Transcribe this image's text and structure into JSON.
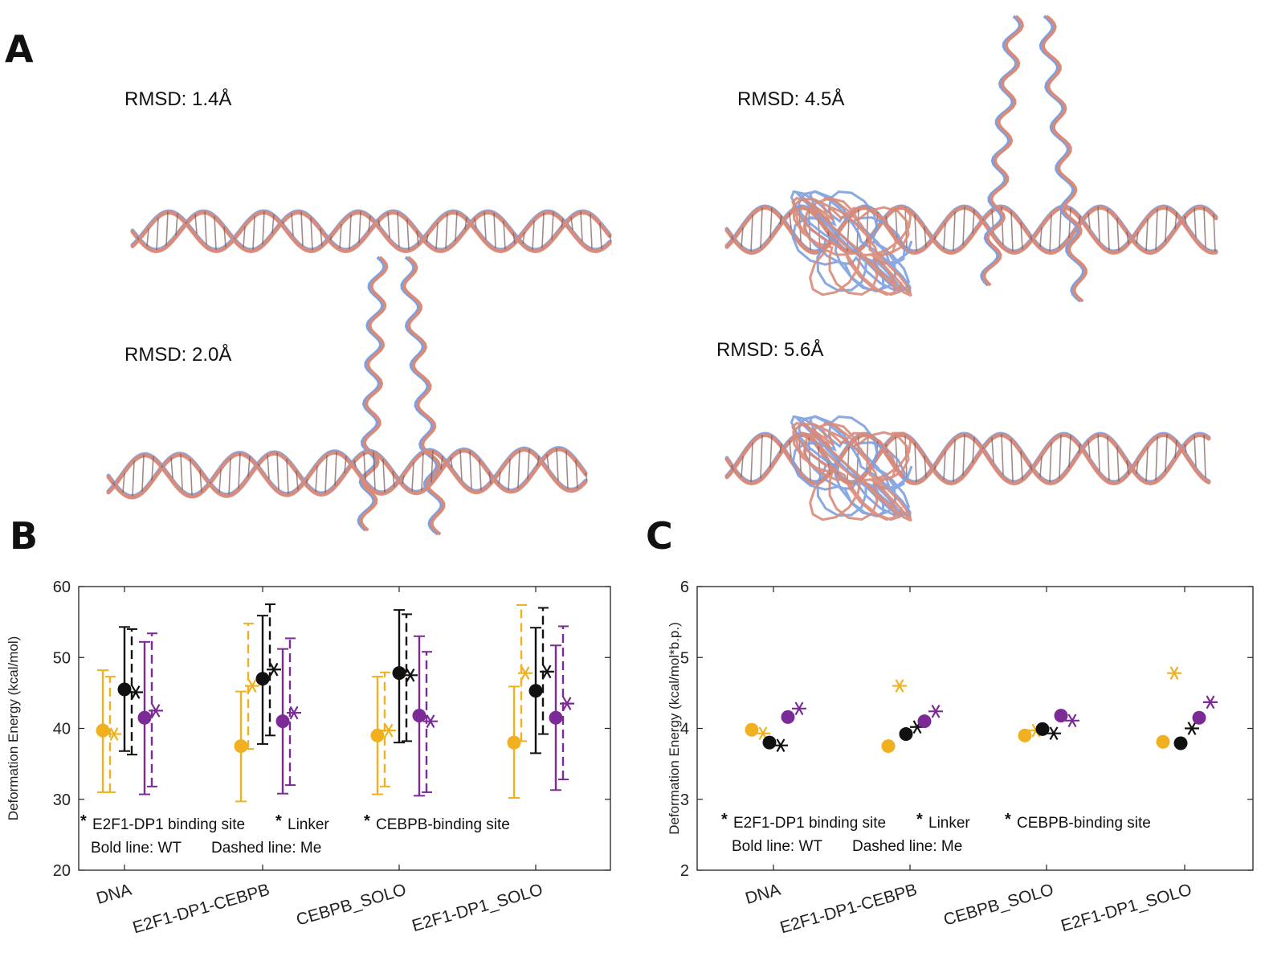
{
  "panels": {
    "a": "A",
    "b": "B",
    "c": "C"
  },
  "structures": [
    {
      "rmsd": "RMSD: 1.4Å"
    },
    {
      "rmsd": "RMSD: 2.0Å"
    },
    {
      "rmsd": "RMSD: 4.5Å"
    },
    {
      "rmsd": "RMSD: 5.6Å"
    }
  ],
  "colors": {
    "wt_structure": "#7da0e0",
    "me_structure": "#d98a78",
    "e2f1": "#f0b020",
    "linker": "#111111",
    "cebpb": "#7b2a96"
  },
  "chart_data": [
    {
      "type": "scatter",
      "title": "",
      "ylabel": "Deformation Energy (kcal/mol)",
      "ylim": [
        20,
        60
      ],
      "yticks": [
        20,
        30,
        40,
        50,
        60
      ],
      "categories": [
        "DNA",
        "E2F1-DP1-CEBPB",
        "CEBPB_SOLO",
        "E2F1-DP1_SOLO"
      ],
      "series": [
        {
          "name": "E2F1-DP1 binding site",
          "color": "#f0b020",
          "wt": [
            39.7,
            37.5,
            39.0,
            38.0
          ],
          "me": [
            39.2,
            46.0,
            39.7,
            47.8
          ],
          "wt_err": [
            [
              31.0,
              48.2
            ],
            [
              29.7,
              45.2
            ],
            [
              30.7,
              47.3
            ],
            [
              30.2,
              45.9
            ]
          ],
          "me_err": [
            [
              31.0,
              47.3
            ],
            [
              37.1,
              54.8
            ],
            [
              31.8,
              47.9
            ],
            [
              38.2,
              57.4
            ]
          ]
        },
        {
          "name": "Linker",
          "color": "#111111",
          "wt": [
            45.5,
            47.0,
            47.8,
            45.3
          ],
          "me": [
            45.1,
            48.3,
            47.5,
            48.0
          ],
          "wt_err": [
            [
              36.8,
              54.3
            ],
            [
              37.8,
              55.9
            ],
            [
              38.0,
              56.7
            ],
            [
              36.5,
              54.2
            ]
          ],
          "me_err": [
            [
              36.3,
              54.0
            ],
            [
              39.0,
              57.5
            ],
            [
              38.2,
              56.1
            ],
            [
              39.2,
              57.0
            ]
          ]
        },
        {
          "name": "CEBPB-binding site",
          "color": "#7b2a96",
          "wt": [
            41.5,
            41.0,
            41.8,
            41.5
          ],
          "me": [
            42.5,
            42.2,
            41.0,
            43.5
          ],
          "wt_err": [
            [
              30.7,
              52.2
            ],
            [
              30.8,
              51.2
            ],
            [
              30.5,
              53.0
            ],
            [
              31.3,
              51.7
            ]
          ],
          "me_err": [
            [
              31.8,
              53.4
            ],
            [
              32.0,
              52.7
            ],
            [
              31.0,
              50.8
            ],
            [
              32.8,
              54.4
            ]
          ]
        }
      ],
      "legend": {
        "items": [
          "E2F1-DP1 binding site",
          "Linker",
          "CEBPB-binding site"
        ],
        "line1": "Bold line: WT",
        "line2": "Dashed line:  Me"
      }
    },
    {
      "type": "scatter",
      "title": "",
      "ylabel": "Deformation Energy (kcal/mol*b.p.)",
      "ylim": [
        2,
        6
      ],
      "yticks": [
        2,
        3,
        4,
        5,
        6
      ],
      "categories": [
        "DNA",
        "E2F1-DP1-CEBPB",
        "CEBPB_SOLO",
        "E2F1-DP1_SOLO"
      ],
      "series": [
        {
          "name": "E2F1-DP1 binding site",
          "color": "#f0b020",
          "wt": [
            3.98,
            3.75,
            3.9,
            3.81
          ],
          "me": [
            3.93,
            4.6,
            3.97,
            4.78
          ]
        },
        {
          "name": "Linker",
          "color": "#111111",
          "wt": [
            3.8,
            3.92,
            3.99,
            3.79
          ],
          "me": [
            3.76,
            4.02,
            3.93,
            4.0
          ]
        },
        {
          "name": "CEBPB-binding site",
          "color": "#7b2a96",
          "wt": [
            4.16,
            4.1,
            4.18,
            4.15
          ],
          "me": [
            4.28,
            4.24,
            4.11,
            4.37
          ]
        }
      ],
      "legend": {
        "items": [
          "E2F1-DP1 binding site",
          "Linker",
          "CEBPB-binding site"
        ],
        "line1": "Bold line: WT",
        "line2": "Dashed line:  Me"
      }
    }
  ]
}
